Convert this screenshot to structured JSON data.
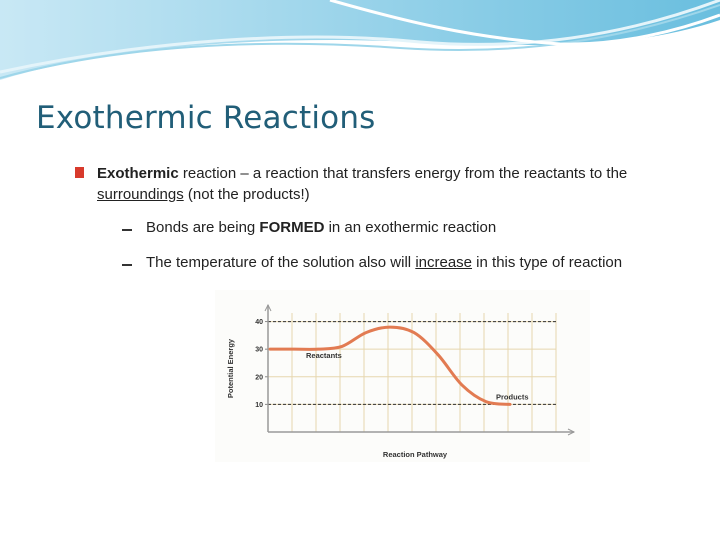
{
  "slide": {
    "title": "Exothermic Reactions",
    "bullets": [
      {
        "parts": [
          "Exothermic",
          " reaction – a reaction that transfers energy from the reactants to the ",
          "surroundings",
          " (not the products!)"
        ],
        "subbullets": [
          {
            "parts": [
              "Bonds are being ",
              "FORMED",
              " in an exothermic reaction"
            ]
          },
          {
            "parts": [
              "The temperature of the solution also will ",
              "increase",
              " in this type of reaction"
            ]
          }
        ]
      }
    ],
    "figure": {
      "y_label": "Potential Energy",
      "x_label": "Reaction Pathway",
      "ylim": [
        0,
        46
      ],
      "yticks": [
        10,
        20,
        30,
        40
      ],
      "grid": true,
      "reference_lines": [
        40,
        10
      ],
      "curve": {
        "color": "#e27b52",
        "values": [
          30,
          30,
          30,
          31,
          36,
          38,
          36,
          28,
          17,
          11,
          10
        ]
      },
      "annotations": [
        {
          "text": "Reactants",
          "value": 30
        },
        {
          "text": "Products",
          "value": 10
        }
      ]
    }
  }
}
